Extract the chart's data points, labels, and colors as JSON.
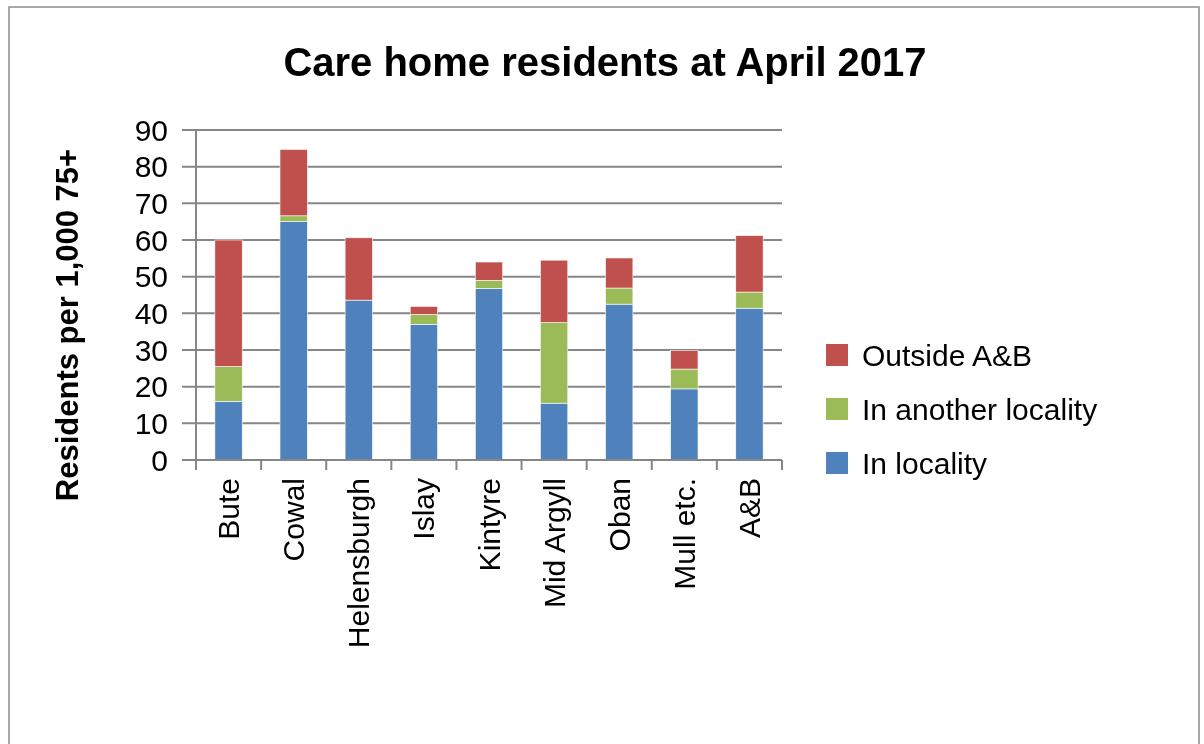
{
  "chart_data": {
    "type": "bar",
    "title": "Care home residents at April 2017",
    "ylabel": "Residents per 1,000 75+",
    "categories": [
      "Bute",
      "Cowal",
      "Helensburgh",
      "Islay",
      "Kintyre",
      "Mid Argyll",
      "Oban",
      "Mull etc.",
      "A&B"
    ],
    "series": [
      {
        "name": "In locality",
        "color": "#4f81bd",
        "values": [
          16,
          65,
          43.6,
          37,
          46.8,
          15.5,
          42.5,
          19.4,
          41.4
        ]
      },
      {
        "name": "In another locality",
        "color": "#9bbb59",
        "values": [
          9.5,
          1.6,
          0,
          2.7,
          2.2,
          22,
          4.4,
          5.4,
          4.4
        ]
      },
      {
        "name": "Outside A&B",
        "color": "#c0504d",
        "values": [
          34.5,
          18.1,
          17,
          2.2,
          5,
          17,
          8.2,
          5.1,
          15.4
        ]
      }
    ],
    "stacked": true,
    "ylim": [
      0,
      90
    ],
    "yticks": [
      0,
      10,
      20,
      30,
      40,
      50,
      60,
      70,
      80,
      90
    ],
    "grid": "y",
    "legend": "right"
  }
}
